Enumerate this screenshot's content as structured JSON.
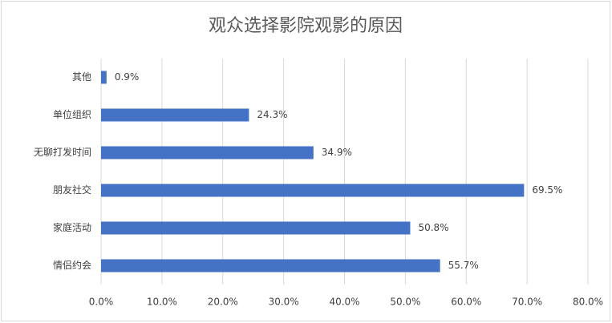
{
  "chart_data": {
    "type": "bar",
    "orientation": "horizontal",
    "title": "观众选择影院观影的原因",
    "categories": [
      "其他",
      "单位组织",
      "无聊打发时间",
      "朋友社交",
      "家庭活动",
      "情侣约会"
    ],
    "values": [
      0.9,
      24.3,
      34.9,
      69.5,
      50.8,
      55.7
    ],
    "value_labels": [
      "0.9%",
      "24.3%",
      "34.9%",
      "69.5%",
      "50.8%",
      "55.7%"
    ],
    "color": "#4472c4",
    "xlim": [
      0,
      80
    ],
    "xticks": [
      {
        "value": 0,
        "label": "0.0%"
      },
      {
        "value": 10,
        "label": "10.0%"
      },
      {
        "value": 20,
        "label": "20.0%"
      },
      {
        "value": 30,
        "label": "30.0%"
      },
      {
        "value": 40,
        "label": "40.0%"
      },
      {
        "value": 50,
        "label": "50.0%"
      },
      {
        "value": 60,
        "label": "60.0%"
      },
      {
        "value": 70,
        "label": "70.0%"
      },
      {
        "value": 80,
        "label": "80.0%"
      }
    ],
    "grid": true
  }
}
